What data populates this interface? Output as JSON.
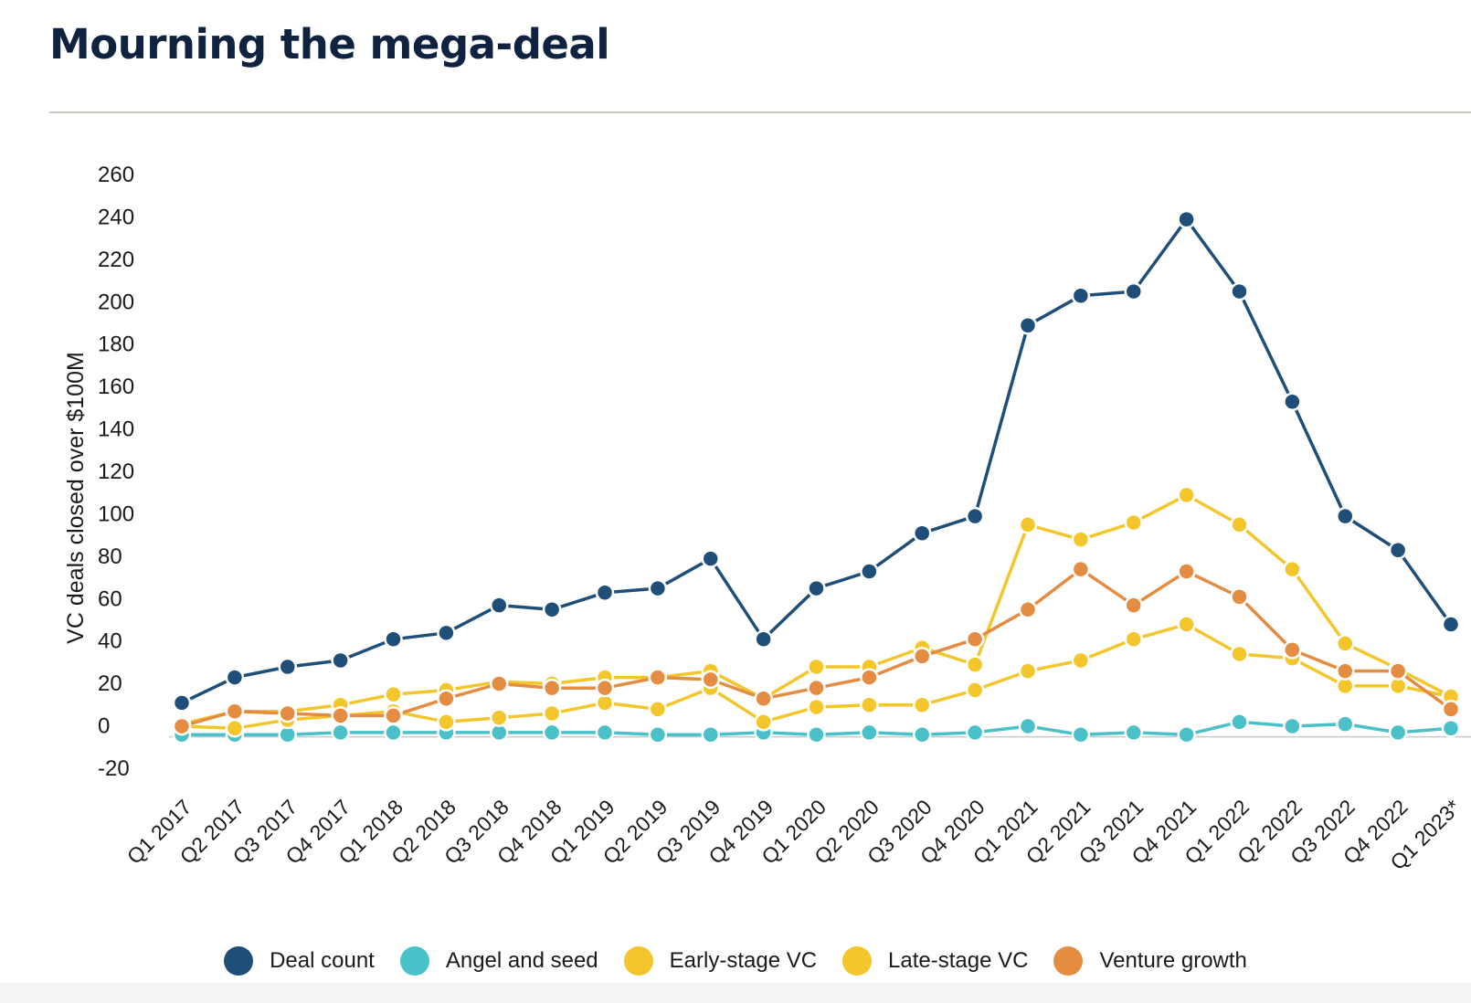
{
  "page": {
    "title": "Mourning the mega-deal"
  },
  "chart_data": {
    "type": "line",
    "title": "Mourning the mega-deal",
    "ylabel": "VC deals closed over $100M",
    "xlabel": "",
    "ylim": [
      -20,
      260
    ],
    "yticks": [
      -20,
      0,
      20,
      40,
      60,
      80,
      100,
      120,
      140,
      160,
      180,
      200,
      220,
      240,
      260
    ],
    "grid": false,
    "legend_position": "bottom",
    "categories": [
      "Q1 2017",
      "Q2 2017",
      "Q3 2017",
      "Q4 2017",
      "Q1 2018",
      "Q2 2018",
      "Q3 2018",
      "Q4 2018",
      "Q1 2019",
      "Q2 2019",
      "Q3 2019",
      "Q4 2019",
      "Q1 2020",
      "Q2 2020",
      "Q3 2020",
      "Q4 2020",
      "Q1 2021",
      "Q2 2021",
      "Q3 2021",
      "Q4 2021",
      "Q1 2022",
      "Q2 2022",
      "Q3 2022",
      "Q4 2022",
      "Q1 2023*"
    ],
    "series": [
      {
        "name": "Deal count",
        "color": "#1f4e79",
        "values": [
          16,
          28,
          33,
          36,
          46,
          49,
          62,
          60,
          68,
          70,
          84,
          46,
          70,
          78,
          96,
          104,
          194,
          208,
          210,
          244,
          210,
          158,
          104,
          88,
          53
        ]
      },
      {
        "name": "Angel and seed",
        "color": "#4ac1c8",
        "values": [
          1,
          1,
          1,
          2,
          2,
          2,
          2,
          2,
          2,
          1,
          1,
          2,
          1,
          2,
          1,
          2,
          5,
          1,
          2,
          1,
          7,
          5,
          6,
          2,
          4
        ]
      },
      {
        "name": "Early-stage VC",
        "color": "#f3c72c",
        "values": [
          5,
          4,
          8,
          10,
          12,
          7,
          9,
          11,
          16,
          13,
          23,
          7,
          14,
          15,
          15,
          22,
          31,
          36,
          46,
          53,
          39,
          37,
          24,
          24,
          19
        ]
      },
      {
        "name": "Late-stage VC",
        "color": "#f3c72c",
        "values": [
          6,
          12,
          12,
          15,
          20,
          22,
          26,
          25,
          28,
          28,
          31,
          18,
          33,
          33,
          42,
          34,
          100,
          93,
          101,
          114,
          100,
          79,
          44,
          32,
          19
        ]
      },
      {
        "name": "Venture growth",
        "color": "#e58c43",
        "values": [
          5,
          12,
          11,
          10,
          10,
          18,
          25,
          23,
          23,
          28,
          27,
          18,
          23,
          28,
          38,
          46,
          60,
          79,
          62,
          78,
          66,
          41,
          31,
          31,
          13
        ]
      }
    ]
  }
}
